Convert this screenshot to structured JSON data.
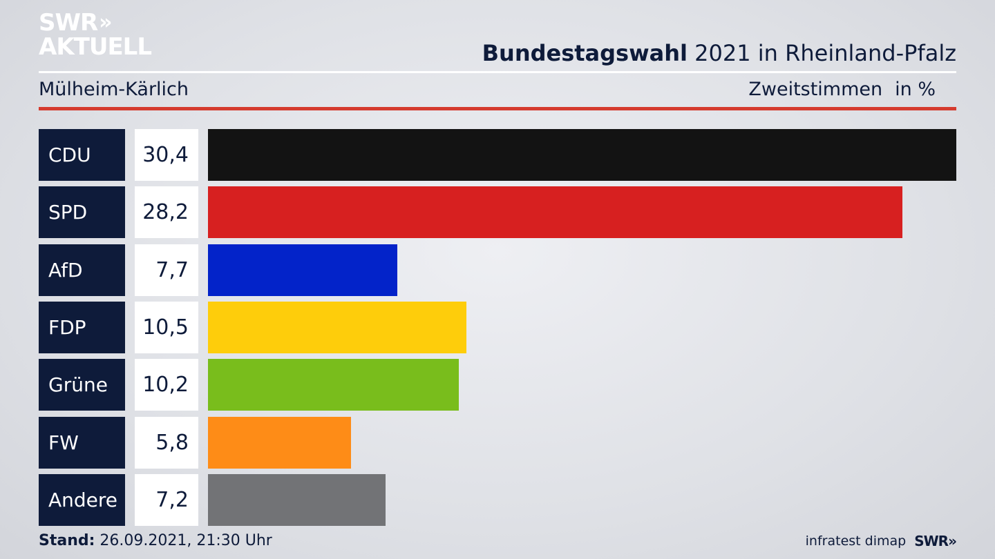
{
  "logo": {
    "line1": "SWR",
    "line1_chevrons": "»",
    "line2": "AKTUELL"
  },
  "header": {
    "title_bold": "Bundestagswahl",
    "title_rest": " 2021 in Rheinland-Pfalz",
    "subtitle": "Mülheim-Kärlich",
    "measure": "Zweitstimmen",
    "unit": "in %"
  },
  "chart_data": {
    "type": "bar",
    "orientation": "horizontal",
    "categories": [
      "CDU",
      "SPD",
      "AfD",
      "FDP",
      "Grüne",
      "FW",
      "Andere"
    ],
    "values": [
      30.4,
      28.2,
      7.7,
      10.5,
      10.2,
      5.8,
      7.2
    ],
    "value_labels": [
      "30,4",
      "28,2",
      "7,7",
      "10,5",
      "10,2",
      "5,8",
      "7,2"
    ],
    "colors": [
      "#131313",
      "#d72020",
      "#0323c9",
      "#fecd0b",
      "#79bd1c",
      "#fe8c17",
      "#727376"
    ],
    "title": "",
    "xlabel": "",
    "ylabel": "",
    "xlim": [
      0,
      30.4
    ],
    "grid": false,
    "legend": "none"
  },
  "footer": {
    "stand_label": "Stand:",
    "stand_value": " 26.09.2021, 21:30 Uhr",
    "source": "infratest dimap",
    "brand": "SWR»"
  },
  "colors": {
    "navy": "#0e1b3a",
    "accent_red": "#d53b2e"
  }
}
